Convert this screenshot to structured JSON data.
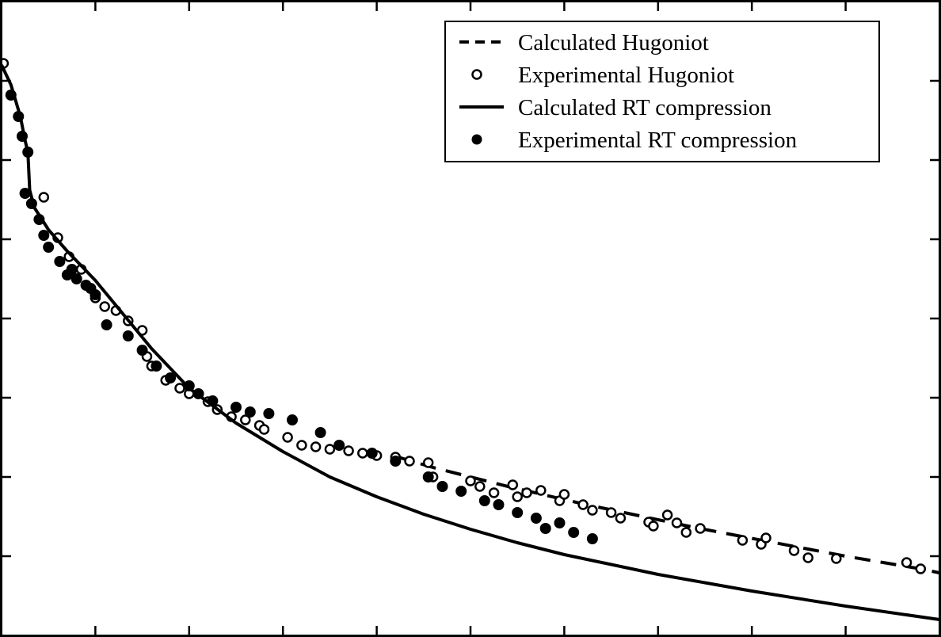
{
  "chart_data": {
    "type": "scatter",
    "title": "",
    "xlabel": "",
    "ylabel": "",
    "xlim": [
      0,
      10
    ],
    "ylim": [
      0,
      8
    ],
    "grid": false,
    "legend_position": "top-right",
    "legend": [
      {
        "label": "Calculated Hugoniot",
        "symbol": "dashed-line"
      },
      {
        "label": "Experimental Hugoniot",
        "symbol": "open-circle"
      },
      {
        "label": "Calculated RT compression",
        "symbol": "solid-line"
      },
      {
        "label": "Experimental RT compression",
        "symbol": "filled-circle"
      }
    ],
    "series": [
      {
        "name": "Calculated Hugoniot",
        "kind": "line",
        "style": "dashed",
        "x": [
          4.2,
          4.6,
          5.0,
          5.4,
          5.8,
          6.2,
          6.6,
          7.0,
          7.4,
          7.8,
          8.2,
          8.6,
          9.0,
          9.4,
          9.8,
          10.0
        ],
        "y": [
          2.26,
          2.12,
          2.0,
          1.88,
          1.77,
          1.66,
          1.56,
          1.46,
          1.36,
          1.27,
          1.18,
          1.09,
          1.0,
          0.92,
          0.84,
          0.79
        ]
      },
      {
        "name": "Experimental Hugoniot",
        "kind": "scatter",
        "marker": "open-circle",
        "x": [
          0.02,
          0.45,
          0.6,
          0.72,
          0.85,
          1.0,
          1.1,
          1.22,
          1.35,
          1.5,
          1.55,
          1.6,
          1.75,
          1.9,
          2.0,
          2.2,
          2.3,
          2.45,
          2.6,
          2.75,
          2.8,
          3.05,
          3.2,
          3.35,
          3.5,
          3.7,
          3.85,
          4.0,
          4.2,
          4.35,
          4.55,
          4.6,
          5.0,
          5.1,
          5.25,
          5.45,
          5.5,
          5.6,
          5.75,
          5.95,
          6.0,
          6.2,
          6.3,
          6.5,
          6.6,
          6.9,
          6.95,
          7.1,
          7.2,
          7.3,
          7.45,
          7.9,
          8.1,
          8.15,
          8.45,
          8.6,
          8.9,
          9.65,
          9.8
        ],
        "y": [
          7.22,
          5.53,
          5.02,
          4.78,
          4.62,
          4.26,
          4.15,
          4.1,
          3.97,
          3.85,
          3.52,
          3.4,
          3.22,
          3.12,
          3.05,
          2.95,
          2.85,
          2.76,
          2.72,
          2.65,
          2.6,
          2.5,
          2.4,
          2.38,
          2.35,
          2.33,
          2.3,
          2.27,
          2.25,
          2.2,
          2.18,
          2.0,
          1.95,
          1.88,
          1.8,
          1.9,
          1.75,
          1.8,
          1.83,
          1.7,
          1.78,
          1.65,
          1.58,
          1.55,
          1.48,
          1.43,
          1.38,
          1.52,
          1.42,
          1.3,
          1.35,
          1.2,
          1.15,
          1.23,
          1.07,
          0.98,
          0.97,
          0.92,
          0.84
        ]
      },
      {
        "name": "Calculated RT compression",
        "kind": "line",
        "style": "solid",
        "x": [
          0.0,
          0.1,
          0.2,
          0.25,
          0.28,
          0.3,
          0.35,
          0.5,
          0.7,
          1.0,
          1.3,
          1.6,
          2.0,
          2.5,
          3.0,
          3.5,
          4.0,
          4.5,
          5.0,
          5.5,
          6.0,
          7.0,
          8.0,
          9.0,
          10.0
        ],
        "y": [
          7.2,
          6.95,
          6.55,
          6.25,
          6.1,
          5.62,
          5.4,
          5.12,
          4.85,
          4.48,
          4.05,
          3.62,
          3.12,
          2.68,
          2.32,
          2.0,
          1.75,
          1.53,
          1.34,
          1.17,
          1.02,
          0.77,
          0.56,
          0.37,
          0.2
        ]
      },
      {
        "name": "Experimental RT compression",
        "kind": "scatter",
        "marker": "filled-circle",
        "x": [
          0.1,
          0.18,
          0.22,
          0.28,
          0.25,
          0.32,
          0.4,
          0.45,
          0.5,
          0.62,
          0.7,
          0.75,
          0.8,
          0.9,
          0.95,
          1.0,
          1.12,
          1.35,
          1.5,
          1.65,
          1.8,
          2.0,
          2.1,
          2.25,
          2.5,
          2.65,
          2.85,
          3.1,
          3.4,
          3.6,
          3.95,
          4.2,
          4.55,
          4.7,
          4.9,
          5.15,
          5.3,
          5.5,
          5.7,
          5.8,
          5.95,
          6.1,
          6.3
        ],
        "y": [
          6.82,
          6.55,
          6.3,
          6.1,
          5.58,
          5.45,
          5.25,
          5.05,
          4.9,
          4.72,
          4.55,
          4.62,
          4.5,
          4.42,
          4.38,
          4.3,
          3.92,
          3.78,
          3.6,
          3.4,
          3.25,
          3.15,
          3.05,
          2.96,
          2.88,
          2.82,
          2.8,
          2.72,
          2.56,
          2.4,
          2.3,
          2.2,
          2.0,
          1.88,
          1.82,
          1.7,
          1.65,
          1.55,
          1.48,
          1.35,
          1.42,
          1.3,
          1.22
        ]
      }
    ]
  }
}
